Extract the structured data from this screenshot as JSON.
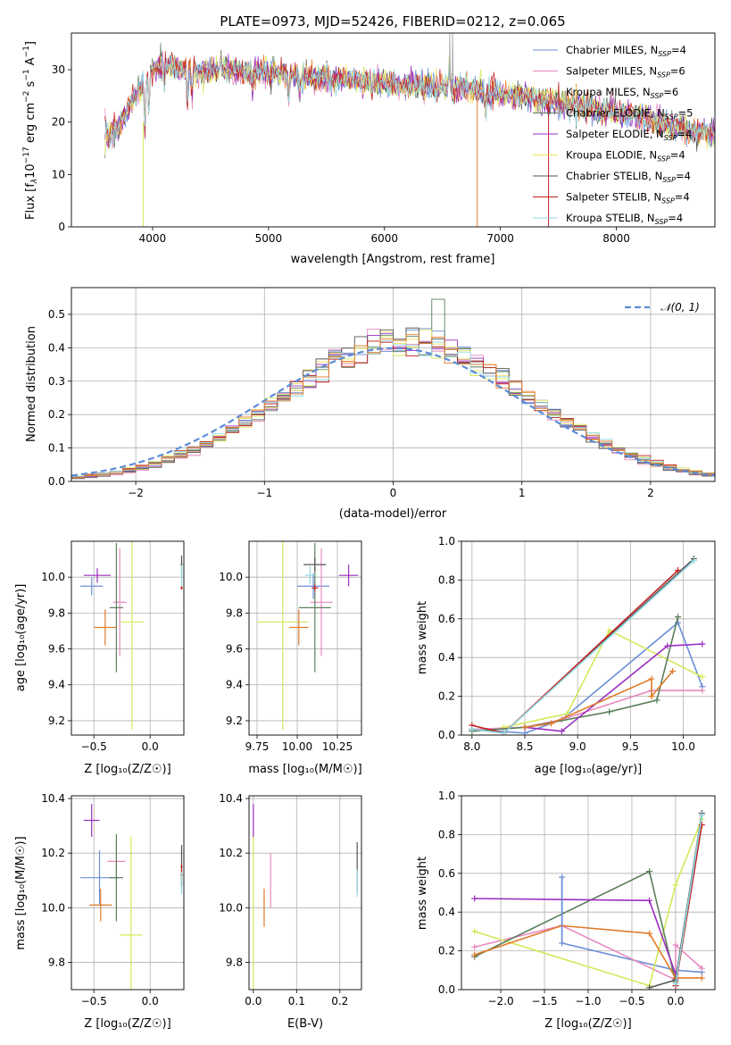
{
  "colors": {
    "chabrier_miles": "#6a8fd8",
    "salpeter_miles": "#e889c0",
    "kroupa_miles": "#d6e85a",
    "chabrier_elodie": "#5a7f5a",
    "salpeter_elodie": "#9a2fbf",
    "kroupa_elodie": "#f0e060",
    "chabrier_stelib": "#555555",
    "salpeter_stelib": "#c02020",
    "kroupa_stelib": "#8fd8e0",
    "orange": "#e07b2a",
    "normal": "#5b8bd6",
    "grid": "#b0b0b0"
  },
  "chart_data": [
    {
      "type": "line",
      "title": "PLATE=0973, MJD=52426, FIBERID=0212, z=0.065",
      "xlabel": "wavelength [Angstrom, rest frame]",
      "ylabel": "Flux [f_λ10^-17 erg cm^-2 s^-1 A^-1]",
      "xlim": [
        3300,
        8850
      ],
      "ylim": [
        0,
        37
      ],
      "xticks": [
        "4000",
        "5000",
        "6000",
        "7000",
        "8000"
      ],
      "yticks": [
        "0",
        "10",
        "20",
        "30"
      ],
      "legend_position": "top-right",
      "series": [
        {
          "name": "Chabrier MILES",
          "nssp": "N",
          "sub": "SSP",
          "val": "=4"
        },
        {
          "name": "Salpeter MILES",
          "nssp": "N",
          "sub": "SSP",
          "val": "=6"
        },
        {
          "name": "Kroupa MILES",
          "nssp": "N",
          "sub": "SSP",
          "val": "=6"
        },
        {
          "name": "Chabrier ELODIE",
          "nssp": "N",
          "sub": "SSP",
          "val": "=5"
        },
        {
          "name": "Salpeter ELODIE",
          "nssp": "N",
          "sub": "SSP",
          "val": "=4"
        },
        {
          "name": "Kroupa ELODIE",
          "nssp": "N",
          "sub": "SSP",
          "val": "=4"
        },
        {
          "name": "Chabrier STELIB",
          "nssp": "N",
          "sub": "SSP",
          "val": "=4"
        },
        {
          "name": "Salpeter STELIB",
          "nssp": "N",
          "sub": "SSP",
          "val": "=4"
        },
        {
          "name": "Kroupa STELIB",
          "nssp": "N",
          "sub": "SSP",
          "val": "=4"
        }
      ],
      "spectrum_continuum": {
        "x": [
          3600,
          3700,
          3800,
          3900,
          4000,
          4100,
          4200,
          4400,
          4600,
          5000,
          5400,
          5800,
          6200,
          6600,
          7000,
          7400,
          7800,
          8200,
          8600,
          8800
        ],
        "y": [
          17,
          19,
          23,
          27,
          30,
          31,
          30.5,
          29.5,
          30,
          29.5,
          28.5,
          28,
          27,
          26.5,
          25.5,
          24,
          22.5,
          21,
          18.5,
          18
        ]
      }
    },
    {
      "type": "bar",
      "title": "",
      "xlabel": "(data-model)/error",
      "ylabel": "Normed distribution",
      "xlim": [
        -2.5,
        2.5
      ],
      "ylim": [
        0,
        0.58
      ],
      "xticks": [
        "-2",
        "-1",
        "0",
        "1",
        "2"
      ],
      "yticks": [
        "0.0",
        "0.1",
        "0.2",
        "0.3",
        "0.4",
        "0.5"
      ],
      "legend": "𝒩(0, 1)",
      "bin_width": 0.1,
      "histogram_center_mean": 0.15,
      "histogram_sigma": 0.95
    },
    {
      "type": "scatter",
      "xlabel": "Z [log10(Z/Z⊙)]",
      "ylabel": "age  [log10(age/yr)]",
      "xlim": [
        -0.7,
        0.3
      ],
      "ylim": [
        9.12,
        10.2
      ],
      "xticks": [
        "-0.5",
        "0.0"
      ],
      "yticks": [
        "9.2",
        "9.4",
        "9.6",
        "9.8",
        "10.0"
      ],
      "points": [
        {
          "color": "chabrier_miles",
          "x": -0.52,
          "xerr": 0.1,
          "y": 9.95,
          "yerr": 0.05
        },
        {
          "color": "salpeter_miles",
          "x": -0.27,
          "xerr": 0.06,
          "y": 9.86,
          "yerr": 0.3
        },
        {
          "color": "kroupa_miles",
          "x": -0.16,
          "xerr": 0.1,
          "y": 9.75,
          "yerr": 0.6
        },
        {
          "color": "chabrier_elodie",
          "x": -0.3,
          "xerr": 0.06,
          "y": 9.83,
          "yerr": 0.36
        },
        {
          "color": "salpeter_elodie",
          "x": -0.47,
          "xerr": 0.12,
          "y": 10.01,
          "yerr": 0.04
        },
        {
          "color": "orange",
          "x": -0.4,
          "xerr": 0.1,
          "y": 9.72,
          "yerr": 0.1
        },
        {
          "color": "chabrier_stelib",
          "x": 0.28,
          "xerr": 0.01,
          "y": 10.07,
          "yerr": 0.05
        },
        {
          "color": "salpeter_stelib",
          "x": 0.28,
          "xerr": 0.01,
          "y": 9.94,
          "yerr": 0.01
        },
        {
          "color": "kroupa_stelib",
          "x": 0.28,
          "xerr": 0.01,
          "y": 10.01,
          "yerr": 0.06
        }
      ]
    },
    {
      "type": "scatter",
      "xlabel": "mass [log10(M/M⊙)]",
      "ylabel": "",
      "xlim": [
        9.7,
        10.4
      ],
      "ylim": [
        9.12,
        10.2
      ],
      "xticks": [
        "9.75",
        "10.00",
        "10.25"
      ],
      "yticks": [
        "9.2",
        "9.4",
        "9.6",
        "9.8",
        "10.0"
      ],
      "points": [
        {
          "color": "chabrier_miles",
          "x": 10.1,
          "xerr": 0.1,
          "y": 9.95,
          "yerr": 0.07
        },
        {
          "color": "salpeter_miles",
          "x": 10.15,
          "xerr": 0.07,
          "y": 9.86,
          "yerr": 0.3
        },
        {
          "color": "kroupa_miles",
          "x": 9.91,
          "xerr": 0.16,
          "y": 9.75,
          "yerr": 0.6
        },
        {
          "color": "chabrier_elodie",
          "x": 10.11,
          "xerr": 0.1,
          "y": 9.83,
          "yerr": 0.36
        },
        {
          "color": "salpeter_elodie",
          "x": 10.32,
          "xerr": 0.06,
          "y": 10.01,
          "yerr": 0.06
        },
        {
          "color": "orange",
          "x": 10.01,
          "xerr": 0.06,
          "y": 9.72,
          "yerr": 0.1
        },
        {
          "color": "chabrier_stelib",
          "x": 10.11,
          "xerr": 0.07,
          "y": 10.07,
          "yerr": 0.04
        },
        {
          "color": "salpeter_stelib",
          "x": 10.11,
          "xerr": 0.02,
          "y": 9.94,
          "yerr": 0.02
        },
        {
          "color": "kroupa_stelib",
          "x": 10.08,
          "xerr": 0.03,
          "y": 10.01,
          "yerr": 0.05
        }
      ]
    },
    {
      "type": "line",
      "xlabel": "age  [log10(age/yr)]",
      "ylabel": "mass weight",
      "xlim": [
        7.9,
        10.3
      ],
      "ylim": [
        0,
        1.0
      ],
      "xticks": [
        "8.0",
        "8.5",
        "9.0",
        "9.5",
        "10.0"
      ],
      "yticks": [
        "0.0",
        "0.2",
        "0.4",
        "0.6",
        "0.8",
        "1.0"
      ],
      "series": [
        {
          "color": "chabrier_miles",
          "x": [
            8.0,
            8.5,
            8.85,
            9.95,
            10.18
          ],
          "y": [
            0.03,
            0.01,
            0.08,
            0.58,
            0.25
          ]
        },
        {
          "color": "salpeter_miles",
          "x": [
            8.0,
            8.5,
            8.85,
            9.7,
            10.18
          ],
          "y": [
            0.03,
            0.04,
            0.08,
            0.23,
            0.23
          ]
        },
        {
          "color": "kroupa_miles",
          "x": [
            8.3,
            8.9,
            9.3,
            10.18
          ],
          "y": [
            0.04,
            0.11,
            0.54,
            0.3
          ]
        },
        {
          "color": "chabrier_elodie",
          "x": [
            8.0,
            8.5,
            9.3,
            9.75,
            9.95
          ],
          "y": [
            0.02,
            0.04,
            0.12,
            0.18,
            0.61
          ]
        },
        {
          "color": "salpeter_elodie",
          "x": [
            8.5,
            8.85,
            9.85,
            10.18
          ],
          "y": [
            0.04,
            0.02,
            0.46,
            0.47
          ]
        },
        {
          "color": "orange",
          "x": [
            8.5,
            8.75,
            9.7,
            9.7,
            9.9
          ],
          "y": [
            0.04,
            0.06,
            0.29,
            0.2,
            0.33
          ]
        },
        {
          "color": "chabrier_stelib",
          "x": [
            8.0,
            8.3,
            10.1
          ],
          "y": [
            0.03,
            0.01,
            0.91
          ]
        },
        {
          "color": "salpeter_stelib",
          "x": [
            8.0,
            8.3,
            9.95
          ],
          "y": [
            0.05,
            0.01,
            0.85
          ]
        },
        {
          "color": "kroupa_stelib",
          "x": [
            8.0,
            8.3,
            10.1
          ],
          "y": [
            0.03,
            0.01,
            0.9
          ]
        }
      ]
    },
    {
      "type": "scatter",
      "xlabel": "Z [log10(Z/Z⊙)]",
      "ylabel": "mass [log10(M/M⊙)]",
      "xlim": [
        -0.7,
        0.3
      ],
      "ylim": [
        9.7,
        10.41
      ],
      "xticks": [
        "-0.5",
        "0.0"
      ],
      "yticks": [
        "9.8",
        "10.0",
        "10.2",
        "10.4"
      ],
      "points": [
        {
          "color": "chabrier_miles",
          "x": -0.45,
          "xerr": 0.17,
          "y": 10.11,
          "yerr": 0.1
        },
        {
          "color": "salpeter_miles",
          "x": -0.3,
          "xerr": 0.08,
          "y": 10.17,
          "yerr": 0.07
        },
        {
          "color": "kroupa_miles",
          "x": -0.17,
          "xerr": 0.1,
          "y": 9.9,
          "yerr": 0.36
        },
        {
          "color": "chabrier_elodie",
          "x": -0.3,
          "xerr": 0.06,
          "y": 10.11,
          "yerr": 0.16
        },
        {
          "color": "salpeter_elodie",
          "x": -0.52,
          "xerr": 0.07,
          "y": 10.32,
          "yerr": 0.06
        },
        {
          "color": "orange",
          "x": -0.44,
          "xerr": 0.1,
          "y": 10.01,
          "yerr": 0.06
        },
        {
          "color": "chabrier_stelib",
          "x": 0.28,
          "xerr": 0.01,
          "y": 10.15,
          "yerr": 0.08
        },
        {
          "color": "salpeter_stelib",
          "x": 0.28,
          "xerr": 0.01,
          "y": 10.12,
          "yerr": 0.04
        },
        {
          "color": "kroupa_stelib",
          "x": 0.28,
          "xerr": 0.01,
          "y": 10.09,
          "yerr": 0.04
        }
      ]
    },
    {
      "type": "scatter",
      "xlabel": "E(B-V)",
      "ylabel": "",
      "xlim": [
        -0.01,
        0.25
      ],
      "ylim": [
        9.7,
        10.41
      ],
      "xticks": [
        "0.0",
        "0.1",
        "0.2"
      ],
      "yticks": [
        "9.8",
        "10.0",
        "10.2",
        "10.4"
      ],
      "points": [
        {
          "color": "salpeter_elodie",
          "x": 0.0,
          "xerr": 0,
          "y": 10.32,
          "yerr": 0.06
        },
        {
          "color": "kroupa_miles",
          "x": 0.0,
          "xerr": 0,
          "y": 9.9,
          "yerr": 0.36
        },
        {
          "color": "salpeter_miles",
          "x": 0.04,
          "xerr": 0,
          "y": 10.1,
          "yerr": 0.1
        },
        {
          "color": "orange",
          "x": 0.025,
          "xerr": 0,
          "y": 10.0,
          "yerr": 0.07
        },
        {
          "color": "chabrier_stelib",
          "x": 0.24,
          "xerr": 0,
          "y": 10.15,
          "yerr": 0.09
        },
        {
          "color": "kroupa_stelib",
          "x": 0.24,
          "xerr": 0,
          "y": 10.09,
          "yerr": 0.05
        }
      ]
    },
    {
      "type": "line",
      "xlabel": "Z [log10(Z/Z⊙)]",
      "ylabel": "mass weight",
      "xlim": [
        -2.45,
        0.45
      ],
      "ylim": [
        0,
        1.0
      ],
      "xticks": [
        "-2.0",
        "-1.5",
        "-1.0",
        "-0.5",
        "0.0"
      ],
      "yticks": [
        "0.0",
        "0.2",
        "0.4",
        "0.6",
        "0.8",
        "1.0"
      ],
      "series": [
        {
          "color": "chabrier_miles",
          "x": [
            -1.3,
            -1.3,
            0.0,
            0.3
          ],
          "y": [
            0.58,
            0.24,
            0.1,
            0.09
          ]
        },
        {
          "color": "salpeter_miles",
          "x": [
            -2.3,
            -1.3,
            0.0,
            0.0,
            0.3
          ],
          "y": [
            0.22,
            0.33,
            0.05,
            0.23,
            0.11
          ]
        },
        {
          "color": "kroupa_miles",
          "x": [
            -2.3,
            -0.3,
            0.0,
            0.3
          ],
          "y": [
            0.3,
            0.02,
            0.54,
            0.88
          ]
        },
        {
          "color": "chabrier_elodie",
          "x": [
            -2.3,
            -0.3,
            0.0
          ],
          "y": [
            0.17,
            0.61,
            0.04
          ]
        },
        {
          "color": "salpeter_elodie",
          "x": [
            -2.3,
            -0.3,
            0.0
          ],
          "y": [
            0.47,
            0.46,
            0.08
          ]
        },
        {
          "color": "orange",
          "x": [
            -2.3,
            -1.3,
            -0.3,
            0.0,
            0.3
          ],
          "y": [
            0.18,
            0.33,
            0.29,
            0.06,
            0.06
          ]
        },
        {
          "color": "chabrier_stelib",
          "x": [
            -0.3,
            0.0,
            0.3
          ],
          "y": [
            0.01,
            0.05,
            0.91
          ]
        },
        {
          "color": "salpeter_stelib",
          "x": [
            0.0,
            0.3
          ],
          "y": [
            0.02,
            0.85
          ]
        },
        {
          "color": "kroupa_stelib",
          "x": [
            0.0,
            0.3
          ],
          "y": [
            0.03,
            0.9
          ]
        }
      ]
    }
  ]
}
